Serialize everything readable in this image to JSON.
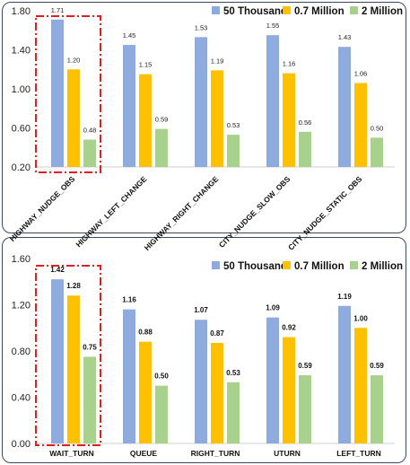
{
  "chart_data": [
    {
      "type": "bar",
      "categories": [
        "HIGHWAY_NUDGE_OBS",
        "HIGHWAY_LEFT_CHANGE",
        "HIGHWAY_RIGHT_CHANGE",
        "CITY_NUDGE_SLOW_OBS",
        "CITY_NUDGE_STATIC_OBS"
      ],
      "series": [
        {
          "name": "50 Thousand",
          "values": [
            1.71,
            1.45,
            1.53,
            1.55,
            1.43
          ],
          "color": "#8faadc"
        },
        {
          "name": "0.7 Million",
          "values": [
            1.2,
            1.15,
            1.19,
            1.16,
            1.06
          ],
          "color": "#ffc000"
        },
        {
          "name": "2 Million",
          "values": [
            0.48,
            0.59,
            0.53,
            0.56,
            0.5
          ],
          "color": "#a9d18e"
        }
      ],
      "yticks": [
        "0.20",
        "0.60",
        "1.00",
        "1.40",
        "1.80"
      ],
      "ylim": [
        0.2,
        1.8
      ],
      "legend": "top-right",
      "grid": false,
      "highlight": "HIGHWAY_NUDGE_OBS"
    },
    {
      "type": "bar",
      "categories": [
        "WAIT_TURN",
        "QUEUE",
        "RIGHT_TURN",
        "UTURN",
        "LEFT_TURN"
      ],
      "series": [
        {
          "name": "50 Thousand",
          "values": [
            1.42,
            1.16,
            1.07,
            1.09,
            1.19
          ],
          "color": "#8faadc"
        },
        {
          "name": "0.7 Million",
          "values": [
            1.28,
            0.88,
            0.87,
            0.92,
            1.0
          ],
          "color": "#ffc000"
        },
        {
          "name": "2 Million",
          "values": [
            0.75,
            0.5,
            0.53,
            0.59,
            0.59
          ],
          "color": "#a9d18e"
        }
      ],
      "yticks": [
        "0.00",
        "0.40",
        "0.80",
        "1.20",
        "1.60"
      ],
      "ylim": [
        0.0,
        1.6
      ],
      "legend": "top-right",
      "grid": false,
      "highlight": "WAIT_TURN"
    }
  ]
}
